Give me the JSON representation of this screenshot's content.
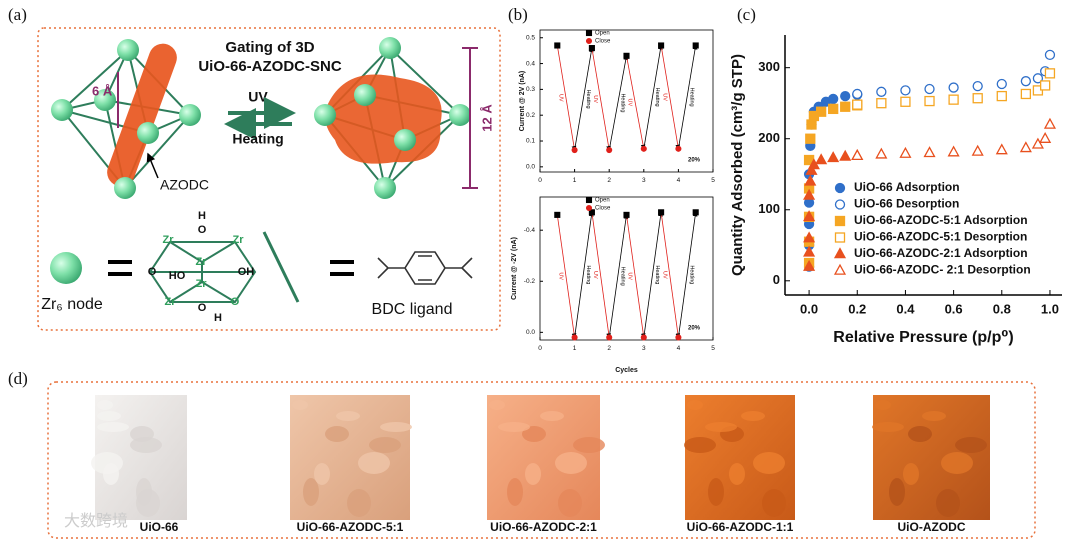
{
  "panel_labels": [
    "(a)",
    "(b)",
    "(c)",
    "(d)"
  ],
  "diagram": {
    "title_lines": [
      "Gating of 3D",
      "UiO-66-AZODC-SNC"
    ],
    "forward": "UV",
    "backward": "Heating",
    "small_size": "6 Å",
    "large_size": "12 Å",
    "linker": "AZODC",
    "node_label": "Zr₆ node",
    "ligand_label": "BDC ligand",
    "cluster_labels": [
      "H",
      "O",
      "Zr",
      "Zr",
      "O",
      "HO",
      "Zr",
      "OH",
      "Zr",
      "Zr",
      "O",
      "O",
      "H"
    ]
  },
  "chart_data": [
    {
      "type": "scatter",
      "connect": true,
      "ylabel": "Current @ 2V (nA)",
      "xlim": [
        0,
        5
      ],
      "xticks": [
        0,
        1,
        2,
        3,
        4,
        5
      ],
      "ylim": [
        -0.02,
        0.53
      ],
      "yticks": [
        {
          "value": 0,
          "label": "0.0"
        },
        0.1,
        0.2,
        0.3,
        0.4,
        0.5
      ],
      "series": [
        {
          "name": "Open",
          "color": "#000000",
          "marker": "square",
          "filled": true,
          "x": [
            0.5,
            1.5,
            2.5,
            3.5,
            4.5
          ],
          "values": [
            0.47,
            0.46,
            0.43,
            0.47,
            0.47
          ]
        },
        {
          "name": "Close",
          "color": "#e0201b",
          "marker": "circle",
          "filled": true,
          "x": [
            1,
            2,
            3,
            4
          ],
          "values": [
            0.065,
            0.065,
            0.07,
            0.07
          ]
        }
      ],
      "down_label": "UV",
      "up_label": "Heating",
      "annotation": "20%"
    },
    {
      "type": "scatter",
      "connect": true,
      "ylabel": "Current @ -2V (nA)",
      "xlabel": "Cycles",
      "xlim": [
        0,
        5
      ],
      "xticks": [
        0,
        1,
        2,
        3,
        4,
        5
      ],
      "ylim": [
        0.03,
        -0.53
      ],
      "yticks": [
        -0.4,
        -0.2,
        {
          "value": 0,
          "label": "0.0"
        }
      ],
      "series": [
        {
          "name": "Open",
          "color": "#000000",
          "marker": "square",
          "filled": true,
          "x": [
            0.5,
            1.5,
            2.5,
            3.5,
            4.5
          ],
          "values": [
            -0.46,
            -0.47,
            -0.46,
            -0.47,
            -0.47
          ]
        },
        {
          "name": "Close",
          "color": "#e0201b",
          "marker": "circle",
          "filled": true,
          "x": [
            1,
            2,
            3,
            4
          ],
          "values": [
            0.02,
            0.02,
            0.02,
            0.02
          ]
        }
      ],
      "down_label": "UV",
      "up_label": "Heating",
      "annotation": "20%"
    },
    {
      "type": "scatter",
      "connect": false,
      "ylabel": "Quantity Adsorbed (cm³/g STP)",
      "xlabel": "Relative Pressure (p/p⁰)",
      "xlim": [
        -0.1,
        1.05
      ],
      "xticks": [
        {
          "value": 0,
          "label": "0.0"
        },
        0.2,
        0.4,
        0.6,
        0.8,
        {
          "value": 1,
          "label": "1.0"
        }
      ],
      "ylim": [
        -20,
        346
      ],
      "yticks": [
        0,
        100,
        200,
        300
      ],
      "series": [
        {
          "name": "UiO-66 Adsorption",
          "color": "#2f6fc9",
          "marker": "circle",
          "filled": true,
          "x": [
            0,
            0,
            0,
            0,
            0,
            0.005,
            0.01,
            0.02,
            0.04,
            0.07,
            0.1,
            0.15,
            0.2
          ],
          "values": [
            20,
            50,
            80,
            110,
            150,
            190,
            220,
            238,
            245,
            252,
            256,
            260,
            262
          ]
        },
        {
          "name": "UiO-66 Desorption",
          "color": "#2f6fc9",
          "marker": "circle",
          "filled": false,
          "x": [
            0.2,
            0.3,
            0.4,
            0.5,
            0.6,
            0.7,
            0.8,
            0.9,
            0.95,
            0.98,
            1.0
          ],
          "values": [
            263,
            266,
            268,
            270,
            272,
            274,
            277,
            281,
            285,
            295,
            318
          ]
        },
        {
          "name": "UiO-66-AZODC-5:1 Adsorption",
          "color": "#f5a623",
          "marker": "square",
          "filled": true,
          "x": [
            0,
            0,
            0,
            0,
            0,
            0.005,
            0.01,
            0.02,
            0.05,
            0.1,
            0.15,
            0.2
          ],
          "values": [
            25,
            55,
            90,
            130,
            170,
            200,
            220,
            232,
            238,
            242,
            245,
            247
          ]
        },
        {
          "name": "UiO-66-AZODC-5:1 Desorption",
          "color": "#f5a623",
          "marker": "square",
          "filled": false,
          "x": [
            0.2,
            0.3,
            0.4,
            0.5,
            0.6,
            0.7,
            0.8,
            0.9,
            0.95,
            0.98,
            1.0
          ],
          "values": [
            248,
            250,
            252,
            253,
            255,
            257,
            260,
            263,
            268,
            275,
            292
          ]
        },
        {
          "name": "UiO-66-AZODC-2:1 Adsorption",
          "color": "#e8501e",
          "marker": "triangle",
          "filled": true,
          "x": [
            0,
            0,
            0,
            0,
            0,
            0.005,
            0.01,
            0.02,
            0.05,
            0.1,
            0.15,
            0.2
          ],
          "values": [
            20,
            40,
            60,
            90,
            120,
            140,
            155,
            163,
            170,
            173,
            175,
            176
          ]
        },
        {
          "name": "UiO-66-AZODC- 2:1 Desorption",
          "color": "#e8501e",
          "marker": "triangle",
          "filled": false,
          "x": [
            0.2,
            0.3,
            0.4,
            0.5,
            0.6,
            0.7,
            0.8,
            0.9,
            0.95,
            0.98,
            1.0
          ],
          "values": [
            176,
            178,
            179,
            180,
            181,
            182,
            184,
            187,
            192,
            200,
            220
          ]
        }
      ]
    }
  ],
  "photos": {
    "labels": [
      "UiO-66",
      "UiO-66-AZODC-5:1",
      "UiO-66-AZODC-2:1",
      "UiO-66-AZODC-1:1",
      "UiO-AZODC"
    ]
  },
  "watermark": "大数跨境"
}
